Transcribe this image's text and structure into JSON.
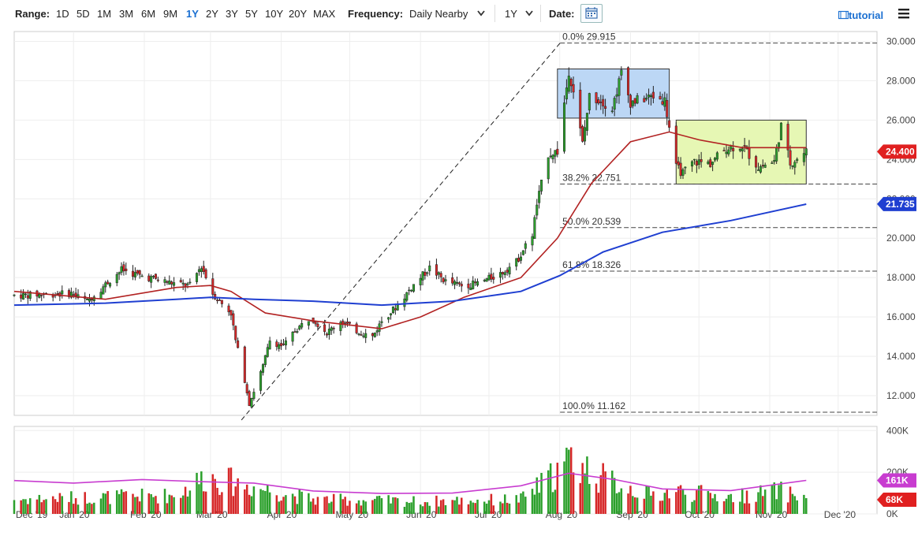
{
  "toolbar": {
    "range_label": "Range:",
    "ranges": [
      "1D",
      "5D",
      "1M",
      "3M",
      "6M",
      "9M",
      "1Y",
      "2Y",
      "3Y",
      "5Y",
      "10Y",
      "20Y",
      "MAX"
    ],
    "active_range": "1Y",
    "frequency_label": "Frequency:",
    "frequency_value": "Daily Nearby",
    "period_value": "1Y",
    "date_label": "Date:",
    "tutorial_label": "tutorial",
    "icons": [
      "calendar-icon",
      "tutorial-icon",
      "menu-icon",
      "chevron-down-icon"
    ]
  },
  "colors": {
    "up": "#2ca02c",
    "down": "#d62728",
    "ma_red": "#b22222",
    "ma_blue": "#1f3fd1",
    "volume_avg": "#c83cd0",
    "range_box_blue": "#bcd7f5",
    "range_box_green": "#e6f7b4",
    "last_price": "#e02020",
    "ma_badge": "#1f3fd1",
    "vol_avg_badge": "#c83cd0",
    "vol_badge": "#e02020"
  },
  "chart_data": {
    "type": "candlestick",
    "price_axis": {
      "ylim": [
        11.0,
        30.5
      ],
      "ticks": [
        "12.000",
        "14.000",
        "16.000",
        "18.000",
        "20.000",
        "22.000",
        "24.000",
        "26.000",
        "28.000",
        "30.000"
      ]
    },
    "volume_axis": {
      "ylim": [
        0,
        420000
      ],
      "ticks": [
        "0K",
        "200K",
        "400K"
      ]
    },
    "x_labels": [
      "Dec '19",
      "Jan '20",
      "Feb '20",
      "Mar '20",
      "Apr '20",
      "May '20",
      "Jun '20",
      "Jul '20",
      "Aug '20",
      "Sep '20",
      "Oct '20",
      "Nov '20",
      "Dec '20"
    ],
    "fib_levels": [
      {
        "label": "0.0% 29.915",
        "value": 29.915
      },
      {
        "label": "38.2% 22.751",
        "value": 22.751
      },
      {
        "label": "50.0% 20.539",
        "value": 20.539
      },
      {
        "label": "61.8% 18.326",
        "value": 18.326
      },
      {
        "label": "100.0% 11.162",
        "value": 11.162
      }
    ],
    "fib_trend": {
      "from": {
        "date": "2020-03-18",
        "value": 11.162
      },
      "to": {
        "date": "2020-08-06",
        "value": 29.915
      }
    },
    "range_boxes": [
      {
        "from": "2020-07-31",
        "to": "2020-09-18",
        "low": 26.1,
        "high": 28.6,
        "color": "blue"
      },
      {
        "from": "2020-09-21",
        "to": "2020-11-17",
        "low": 22.75,
        "high": 26.0,
        "color": "green"
      }
    ],
    "badges": {
      "last_price": "24.400",
      "ma_value": "21.735",
      "volume_avg": "161K",
      "volume": "68K"
    },
    "price_anchors": [
      [
        "2019-12-09",
        17.1
      ],
      [
        "2019-12-31",
        17.2
      ],
      [
        "2020-01-07",
        16.8
      ],
      [
        "2020-01-22",
        18.4
      ],
      [
        "2020-01-30",
        18.1
      ],
      [
        "2020-02-07",
        17.9
      ],
      [
        "2020-02-14",
        17.7
      ],
      [
        "2020-02-21",
        17.6
      ],
      [
        "2020-02-26",
        18.6
      ],
      [
        "2020-03-02",
        17.2
      ],
      [
        "2020-03-05",
        16.8
      ],
      [
        "2020-03-10",
        16.2
      ],
      [
        "2020-03-12",
        14.8
      ],
      [
        "2020-03-16",
        12.8
      ],
      [
        "2020-03-18",
        11.6
      ],
      [
        "2020-03-24",
        13.5
      ],
      [
        "2020-03-27",
        14.8
      ],
      [
        "2020-04-02",
        14.5
      ],
      [
        "2020-04-07",
        15.3
      ],
      [
        "2020-04-14",
        16.0
      ],
      [
        "2020-04-21",
        15.2
      ],
      [
        "2020-04-27",
        15.8
      ],
      [
        "2020-05-04",
        15.3
      ],
      [
        "2020-05-11",
        15.0
      ],
      [
        "2020-05-15",
        15.8
      ],
      [
        "2020-05-22",
        16.6
      ],
      [
        "2020-05-28",
        17.5
      ],
      [
        "2020-06-05",
        18.5
      ],
      [
        "2020-06-12",
        17.8
      ],
      [
        "2020-06-19",
        17.6
      ],
      [
        "2020-06-26",
        17.7
      ],
      [
        "2020-07-06",
        18.2
      ],
      [
        "2020-07-13",
        18.8
      ],
      [
        "2020-07-20",
        20.2
      ],
      [
        "2020-07-22",
        21.7
      ],
      [
        "2020-07-27",
        24.3
      ],
      [
        "2020-07-31",
        24.4
      ],
      [
        "2020-08-05",
        28.5
      ],
      [
        "2020-08-07",
        27.5
      ],
      [
        "2020-08-11",
        24.8
      ],
      [
        "2020-08-14",
        27.2
      ],
      [
        "2020-08-19",
        27.0
      ],
      [
        "2020-08-24",
        26.6
      ],
      [
        "2020-08-28",
        28.4
      ],
      [
        "2020-09-01",
        26.9
      ],
      [
        "2020-09-04",
        27.0
      ],
      [
        "2020-09-11",
        27.2
      ],
      [
        "2020-09-16",
        27.0
      ],
      [
        "2020-09-21",
        23.6
      ],
      [
        "2020-09-24",
        23.3
      ],
      [
        "2020-09-29",
        23.9
      ],
      [
        "2020-10-06",
        23.8
      ],
      [
        "2020-10-13",
        24.6
      ],
      [
        "2020-10-20",
        24.7
      ],
      [
        "2020-10-27",
        23.6
      ],
      [
        "2020-11-03",
        23.9
      ],
      [
        "2020-11-06",
        25.7
      ],
      [
        "2020-11-10",
        23.8
      ],
      [
        "2020-11-17",
        24.4
      ]
    ],
    "ma_red": [
      [
        "2019-12-06",
        17.3
      ],
      [
        "2020-01-15",
        16.9
      ],
      [
        "2020-02-15",
        17.5
      ],
      [
        "2020-03-01",
        17.6
      ],
      [
        "2020-03-10",
        17.3
      ],
      [
        "2020-03-25",
        16.2
      ],
      [
        "2020-04-15",
        15.8
      ],
      [
        "2020-05-15",
        15.4
      ],
      [
        "2020-06-01",
        16.0
      ],
      [
        "2020-06-20",
        17.0
      ],
      [
        "2020-07-15",
        18.0
      ],
      [
        "2020-07-31",
        20.0
      ],
      [
        "2020-08-15",
        22.8
      ],
      [
        "2020-09-01",
        24.9
      ],
      [
        "2020-09-18",
        25.4
      ],
      [
        "2020-10-01",
        25.0
      ],
      [
        "2020-10-20",
        24.6
      ],
      [
        "2020-11-17",
        24.6
      ]
    ],
    "ma_blue": [
      [
        "2019-12-06",
        16.6
      ],
      [
        "2020-01-15",
        16.7
      ],
      [
        "2020-02-15",
        16.9
      ],
      [
        "2020-03-01",
        17.0
      ],
      [
        "2020-03-20",
        16.9
      ],
      [
        "2020-04-15",
        16.8
      ],
      [
        "2020-05-15",
        16.6
      ],
      [
        "2020-06-15",
        16.8
      ],
      [
        "2020-07-15",
        17.3
      ],
      [
        "2020-08-01",
        18.1
      ],
      [
        "2020-08-20",
        19.3
      ],
      [
        "2020-09-15",
        20.3
      ],
      [
        "2020-10-15",
        20.9
      ],
      [
        "2020-11-17",
        21.73
      ]
    ],
    "volume_avg_series": [
      [
        "2019-12-06",
        160000
      ],
      [
        "2020-01-01",
        148000
      ],
      [
        "2020-01-31",
        165000
      ],
      [
        "2020-02-25",
        155000
      ],
      [
        "2020-03-20",
        148000
      ],
      [
        "2020-04-15",
        110000
      ],
      [
        "2020-05-15",
        98000
      ],
      [
        "2020-06-15",
        100000
      ],
      [
        "2020-07-15",
        135000
      ],
      [
        "2020-08-05",
        195000
      ],
      [
        "2020-08-25",
        165000
      ],
      [
        "2020-09-15",
        120000
      ],
      [
        "2020-10-15",
        112000
      ],
      [
        "2020-11-17",
        161000
      ]
    ]
  }
}
